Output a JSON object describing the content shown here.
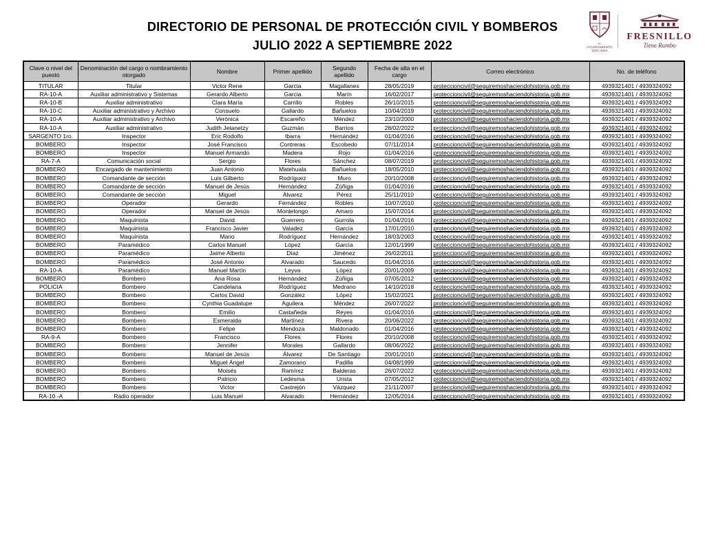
{
  "page": {
    "title_line1": "DIRECTORIO DE PERSONAL DE PROTECCIÓN CIVIL Y BOMBEROS",
    "title_line2": "JULIO 2022 A SEPTIEMBRE 2022"
  },
  "logo": {
    "crest_caption_line1": "H. AYUNTAMIENTO",
    "crest_caption_line2": "2021·2024",
    "brand": "FRESNILLO",
    "tagline": "Tiene Rumbo",
    "brand_color": "#7b2130"
  },
  "table": {
    "columns": [
      "Clave o nivel del puesto",
      "Denominación del cargo o nombramiento otorgado",
      "Nombre",
      "Primer apellido",
      "Segundo apellido",
      "Fecha de alta en el cargo",
      "Correo electrónico",
      "No. de teléfono"
    ],
    "phone_underlined_row_index": 5,
    "rows": [
      [
        "TITULAR",
        "Titular",
        "Victor Rene",
        "Garcia",
        "Magallanes",
        "28/05/2019",
        "proteccioncivil@seguiremoshaciendohistoria.gob.mx",
        "4939321401 / 4939324092"
      ],
      [
        "RA-10-A",
        "Auxiliar administrativo y Sistemas",
        "Gerardo Alberto",
        "Garcia",
        "Marín",
        "16/02/2017",
        "proteccioncivil@seguiremoshaciendohistoria.gob.mx",
        "4939321401 / 4939324092"
      ],
      [
        "RA-10-B",
        "Auxiliar administrativo",
        "Clara María",
        "Carrillo",
        "Robles",
        "26/10/2015",
        "proteccioncivil@seguiremoshaciendohistoria.gob.mx",
        "4939321401 / 4939324092"
      ],
      [
        "RA-10-C",
        "Auxiliar administrativo y Archivo",
        "Consuelo",
        "Gallardo",
        "Bañuelos",
        "10/04/2019",
        "proteccioncivil@seguiremoshaciendohistoria.gob.mx",
        "4939321401 / 4939324092"
      ],
      [
        "RA-10-A",
        "Auxiliar administrativo y Archivo",
        "Verónica",
        "Escareño",
        "Méndez",
        "23/10/2000",
        "proteccioncivil@seguiremoshaciendohistoria.gob.mx",
        "4939321401 / 4939324092"
      ],
      [
        "RA-10-A",
        "Auxiliar administrativo",
        "Judith Jetanetzy",
        "Guzmán",
        "Barrios",
        "28/02/2022",
        "proteccioncivil@seguiremoshaciendohistoria.gob.mx",
        "4939321401 / 4939324092"
      ],
      [
        "SARGENTO 1ro.",
        "Inspector",
        "Eric Rodolfo",
        "Ibarra",
        "Hernández",
        "01/04/2016",
        "proteccioncivil@seguiremoshaciendohistoria.gob.mx",
        "4939321401 / 4939324092"
      ],
      [
        "BOMBERO",
        "Inspector",
        "José Francisco",
        "Contreras",
        "Escobedo",
        "07/11/2014",
        "proteccioncivil@seguiremoshaciendohistoria.gob.mx",
        "4939321401 / 4939324092"
      ],
      [
        "BOMBERO",
        "Inspector",
        "Manuel Armando",
        "Madera",
        "Rojo",
        "01/04/2016",
        "proteccioncivil@seguiremoshaciendohistoria.gob.mx",
        "4939321401 / 4939324092"
      ],
      [
        "RA-7-A",
        "Comunicación social",
        "Sergio",
        "Flores",
        "Sánchez",
        "08/07/2019",
        "proteccioncivil@seguiremoshaciendohistoria.gob.mx",
        "4939321401 / 4939324092"
      ],
      [
        "BOMBERO",
        "Encargado de mantenimiento",
        "Juan Antonio",
        "Matehuala",
        "Bañuelos",
        "18/05/2010",
        "proteccioncivil@seguiremoshaciendohistoria.gob.mx",
        "4939321401 / 4939324092"
      ],
      [
        "BOMBERO",
        "Comandante de sección",
        "Luis Gilberto",
        "Rodríguez",
        "Muro",
        "20/10/2008",
        "proteccioncivil@seguiremoshaciendohistoria.gob.mx",
        "4939321401 / 4939324092"
      ],
      [
        "BOMBERO",
        "Comandante de sección",
        "Manuel de Jesús",
        "Hernández",
        "Zúñiga",
        "01/04/2016",
        "proteccioncivil@seguiremoshaciendohistoria.gob.mx",
        "4939321401 / 4939324092"
      ],
      [
        "BOMBERO",
        "Comandante de sección",
        "Miguel",
        "Álvarez",
        "Pérez",
        "25/11/2010",
        "proteccioncivil@seguiremoshaciendohistoria.gob.mx",
        "4939321401 / 4939324092"
      ],
      [
        "BOMBERO",
        "Operador",
        "Gerardo",
        "Fernández",
        "Robles",
        "10/07/2010",
        "proteccioncivil@seguiremoshaciendohistoria.gob.mx",
        "4939321401 / 4939324092"
      ],
      [
        "BOMBERO",
        "Operador",
        "Manuel de Jesús",
        "Montelongo",
        "Amaro",
        "15/07/2014",
        "proteccioncivil@seguiremoshaciendohistoria.gob.mx",
        "4939321401 / 4939324092"
      ],
      [
        "BOMBERO",
        "Maquinista",
        "David",
        "Guerrero",
        "Gurrola",
        "01/04/2016",
        "proteccioncivil@seguiremoshaciendohistoria.gob.mx",
        "4939321401 / 4939324092"
      ],
      [
        "BOMBERO",
        "Maquinista",
        "Francisco Javier",
        "Valadez",
        "García",
        "17/01/2010",
        "proteccioncivil@seguiremoshaciendohistoria.gob.mx",
        "4939321401 / 4939324092"
      ],
      [
        "BOMBERO",
        "Maquinista",
        "Mario",
        "Rodríguez",
        "Hernández",
        "18/03/2003",
        "proteccioncivil@seguiremoshaciendohistoria.gob.mx",
        "4939321401 / 4939324092"
      ],
      [
        "BOMBERO",
        "Paramédico",
        "Carlos Manuel",
        "López",
        "García",
        "12/01/1999",
        "proteccioncivil@seguiremoshaciendohistoria.gob.mx",
        "4939321401 / 4939324092"
      ],
      [
        "BOMBERO",
        "Paramédico",
        "Jaime Alberto",
        "Díaz",
        "Jiménez",
        "26/02/2011",
        "proteccioncivil@seguiremoshaciendohistoria.gob.mx",
        "4939321401 / 4939324092"
      ],
      [
        "BOMBERO",
        "Paramédico",
        "José Antonio",
        "Alvarado",
        "Saucedo",
        "01/04/2016",
        "proteccioncivil@seguiremoshaciendohistoria.gob.mx",
        "4939321401 / 4939324092"
      ],
      [
        "RA-10-A",
        "Paramédico",
        "Manuel Martín",
        "Leyva",
        "López",
        "20/01/2009",
        "proteccioncivil@seguiremoshaciendohistoria.gob.mx",
        "4939321401 / 4939324092"
      ],
      [
        "BOMBERO",
        "Bombero",
        "Ana Rosa",
        "Hernández",
        "Zúñiga",
        "07/05/2012",
        "proteccioncivil@seguiremoshaciendohistoria.gob.mx",
        "4939321401 / 4939324092"
      ],
      [
        "POLICIA",
        "Bombero",
        "Candelaria",
        "Rodríguez",
        "Medrano",
        "14/10/2018",
        "proteccioncivil@seguiremoshaciendohistoria.gob.mx",
        "4939321401 / 4939324092"
      ],
      [
        "BOMBERO",
        "Bombero",
        "Carlos David",
        "González",
        "López",
        "15/02/2021",
        "proteccioncivil@seguiremoshaciendohistoria.gob.mx",
        "4939321401 / 4939324092"
      ],
      [
        "BOMBERO",
        "Bombero",
        "Cynthia Guadalupe",
        "Aguilera",
        "Méndez",
        "26/07/2022",
        "proteccioncivil@seguiremoshaciendohistoria.gob.mx",
        "4939321401 / 4939324092"
      ],
      [
        "BOMBERO",
        "Bombero",
        "Emilio",
        "Castañeda",
        "Reyes",
        "01/04/2016",
        "proteccioncivil@seguiremoshaciendohistoria.gob.mx",
        "4939321401 / 4939324092"
      ],
      [
        "BOMBERO",
        "Bombero",
        "Esmeralda",
        "Martínez",
        "Rivera",
        "20/06/2022",
        "proteccioncivil@seguiremoshaciendohistoria.gob.mx",
        "4939321401 / 4939324092"
      ],
      [
        "BOMBERO",
        "Bombero",
        "Felipe",
        "Mendoza",
        "Maldonado",
        "01/04/2016",
        "proteccioncivil@seguiremoshaciendohistoria.gob.mx",
        "4939321401 / 4939324092"
      ],
      [
        "RA-9-A",
        "Bombero",
        "Francisco",
        "Flores",
        "Flores",
        "20/10/2008",
        "proteccioncivil@seguiremoshaciendohistoria.gob.mx",
        "4939321401 / 4939324092"
      ],
      [
        "BOMBERO",
        "Bombero",
        "Jennifer",
        "Morales",
        "Gallardo",
        "08/06/2022",
        "proteccioncivil@seguiremoshaciendohistoria.gob.mx",
        "4939321401 / 4939324092"
      ],
      [
        "BOMBERO",
        "Bombero",
        "Manuel de Jesús",
        "Álvarez",
        "De Santiago",
        "20/01/2010",
        "proteccioncivil@seguiremoshaciendohistoria.gob.mx",
        "4939321401 / 4939324092"
      ],
      [
        "BOMBERO",
        "Bombero",
        "Miguel Ángel",
        "Zamorano",
        "Padilla",
        "04/08/1999",
        "proteccioncivil@seguiremoshaciendohistoria.gob.mx",
        "4939321401 / 4939324092"
      ],
      [
        "BOMBERO",
        "Bombero",
        "Moisés",
        "Ramírez",
        "Balderas",
        "26/07/2022",
        "proteccioncivil@seguiremoshaciendohistoria.gob.mx",
        "4939321401 / 4939324092"
      ],
      [
        "BOMBERO",
        "Bombero",
        "Patricio",
        "Ledesma",
        "Urista",
        "07/05/2012",
        "proteccioncivil@seguiremoshaciendohistoria.gob.mx",
        "4939321401 / 4939324092"
      ],
      [
        "BOMBERO",
        "Bombero",
        "Victor",
        "Castrejón",
        "Vázquez",
        "21/11/2007",
        "proteccioncivil@seguiremoshaciendohistoria.gob.mx",
        "4939321401 / 4939324092"
      ],
      [
        "RA-10 -A",
        "Radio operador",
        "Luis Manuel",
        "Alvarado",
        "Hernández",
        "12/05/2014",
        "proteccioncivil@seguiremoshaciendohistoria.gob.mx",
        "4939321401 / 4939324092"
      ]
    ]
  }
}
